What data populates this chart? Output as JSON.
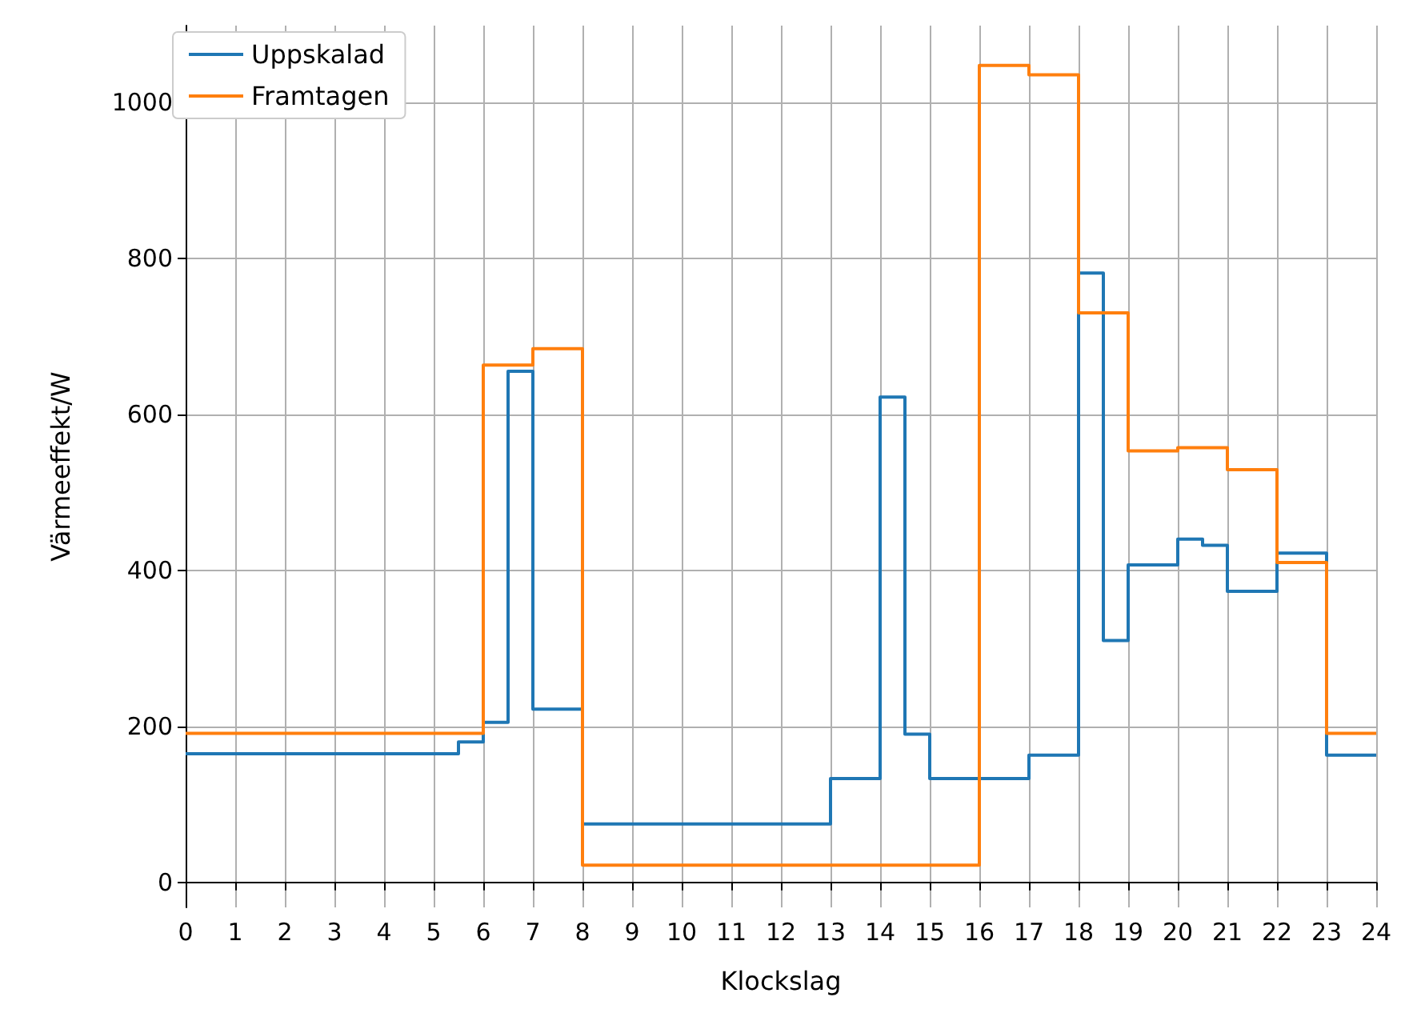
{
  "chart_data": {
    "type": "step",
    "xlabel": "Klockslag",
    "ylabel": "Värmeeffekt/W",
    "xlim": [
      0,
      24
    ],
    "xticks": [
      0,
      1,
      2,
      3,
      4,
      5,
      6,
      7,
      8,
      9,
      10,
      11,
      12,
      13,
      14,
      15,
      16,
      17,
      18,
      19,
      20,
      21,
      22,
      23,
      24
    ],
    "ylim": [
      -32,
      1098
    ],
    "yticks": [
      0,
      200,
      400,
      600,
      800,
      1000
    ],
    "grid": true,
    "legend": "top left",
    "marker": "none",
    "line_style": "solid",
    "series": [
      {
        "name": "Uppskalad",
        "color": "#1f77b4",
        "x": [
          0,
          5.5,
          6,
          6.5,
          7,
          8,
          13,
          14,
          14.5,
          15,
          17,
          18,
          18.5,
          19,
          20,
          20.5,
          21,
          22,
          23,
          24
        ],
        "values": [
          165,
          180,
          205,
          655,
          222,
          75,
          133,
          622,
          190,
          133,
          163,
          781,
          310,
          407,
          440,
          432,
          373,
          422,
          163,
          163
        ]
      },
      {
        "name": "Framtagen",
        "color": "#ff7f0e",
        "x": [
          0,
          6,
          7,
          8,
          16,
          17,
          18,
          19,
          20,
          21,
          22,
          23,
          24
        ],
        "values": [
          191,
          663,
          684,
          22,
          1047,
          1035,
          730,
          553,
          557,
          529,
          410,
          191,
          191
        ]
      }
    ]
  }
}
